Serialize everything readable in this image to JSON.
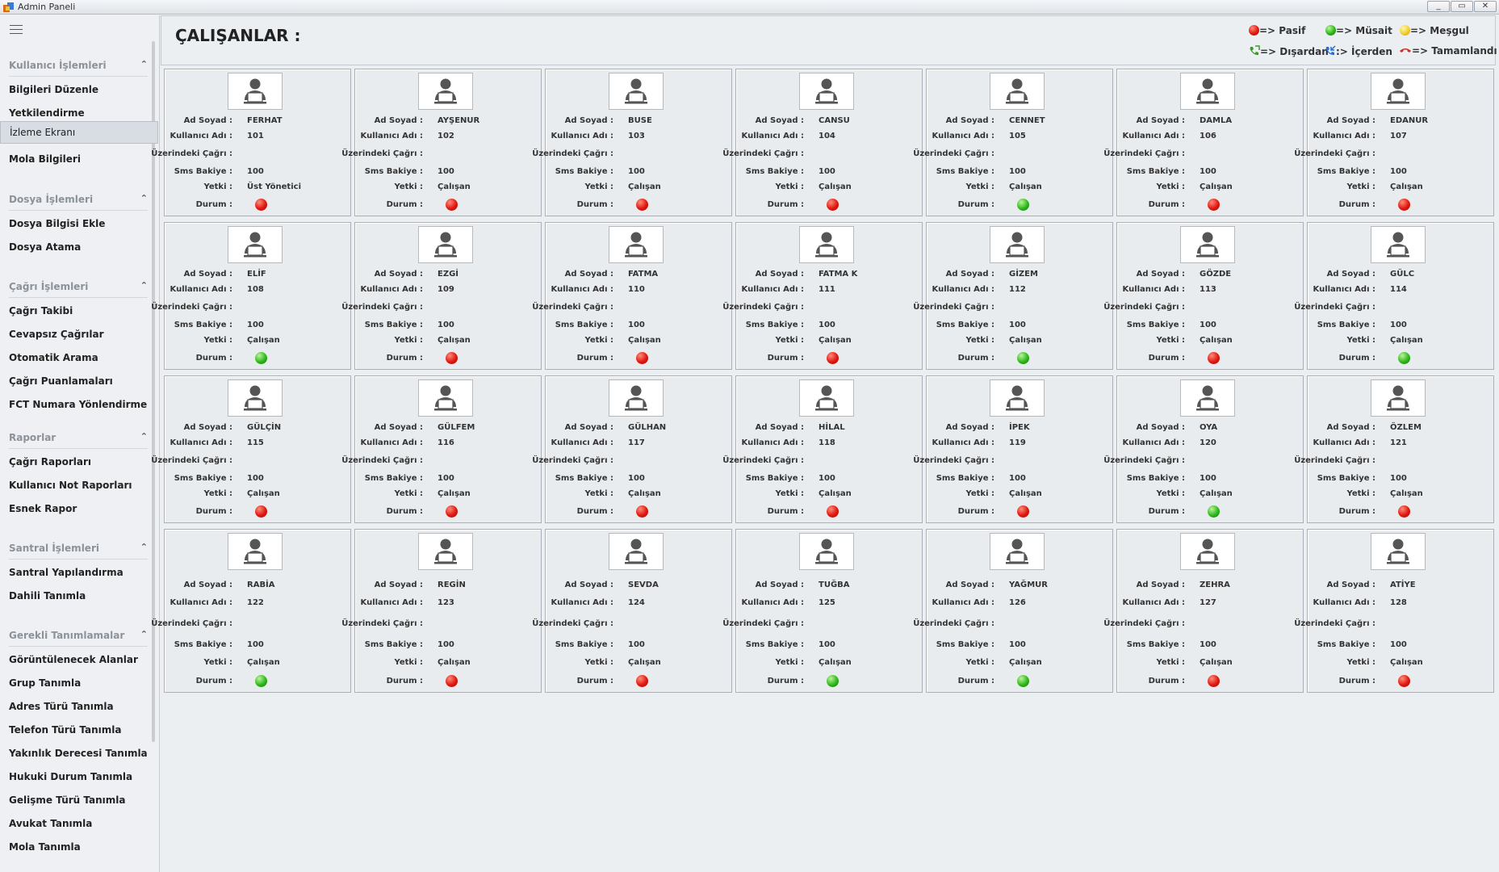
{
  "window": {
    "title": "Admin Paneli",
    "minimize": "_",
    "restore": "▭",
    "close": "✕"
  },
  "sidebar": {
    "groups": [
      {
        "title": "Kullanıcı İşlemleri",
        "items": [
          "Bilgileri Düzenle",
          "Yetkilendirme",
          "İzleme Ekranı",
          "Mola Bilgileri"
        ],
        "active_index": 2
      },
      {
        "title": "Dosya İşlemleri",
        "items": [
          "Dosya Bilgisi Ekle",
          "Dosya Atama"
        ]
      },
      {
        "title": "Çağrı İşlemleri",
        "items": [
          "Çağrı Takibi",
          "Cevapsız Çağrılar",
          "Otomatik Arama",
          "Çağrı Puanlamaları",
          "FCT Numara Yönlendirme"
        ]
      },
      {
        "title": "Raporlar",
        "items": [
          "Çağrı Raporları",
          "Kullanıcı Not Raporları",
          "Esnek Rapor"
        ]
      },
      {
        "title": "Santral İşlemleri",
        "items": [
          "Santral Yapılandırma",
          "Dahili Tanımla"
        ]
      },
      {
        "title": "Gerekli Tanımlamalar",
        "items": [
          "Görüntülenecek Alanlar",
          "Grup Tanımla",
          "Adres Türü Tanımla",
          "Telefon Türü Tanımla",
          "Yakınlık Derecesi Tanımla",
          "Hukuki Durum Tanımla",
          "Gelişme Türü Tanımla",
          "Avukat Tanımla",
          "Mola Tanımla"
        ]
      }
    ],
    "collapse_glyph": "⌃"
  },
  "header": {
    "title": "ÇALIŞANLAR :",
    "legend": [
      {
        "icon": "red-status-dot",
        "text": "=> Pasif"
      },
      {
        "icon": "green-status-dot",
        "text": "=> Müsait"
      },
      {
        "icon": "yellow-status-dot",
        "text": "=> Meşgul"
      },
      {
        "icon": "outgoing-call-icon",
        "text": "=> Dışardan"
      },
      {
        "icon": "incoming-call-icon",
        "text": ":> İçerden"
      },
      {
        "icon": "call-ended-icon",
        "text": "=> Tamamlandı"
      }
    ]
  },
  "labels": {
    "name": "Ad Soyad :",
    "username": "Kullanıcı Adı :",
    "call": "Üzerindeki Çağrı :",
    "sms": "Sms Bakiye :",
    "role": "Yetki :",
    "status": "Durum :"
  },
  "status_colors": {
    "red": "#e01810",
    "green": "#2fb81c",
    "yellow": "#f0d030"
  },
  "employees": [
    {
      "name": "FERHAT",
      "username": "101",
      "call": "",
      "sms": "100",
      "role": "Üst Yönetici",
      "status": "red"
    },
    {
      "name": "AYŞENUR",
      "username": "102",
      "call": "",
      "sms": "100",
      "role": "Çalışan",
      "status": "red"
    },
    {
      "name": "BUSE",
      "username": "103",
      "call": "",
      "sms": "100",
      "role": "Çalışan",
      "status": "red"
    },
    {
      "name": "CANSU",
      "username": "104",
      "call": "",
      "sms": "100",
      "role": "Çalışan",
      "status": "red"
    },
    {
      "name": "CENNET",
      "username": "105",
      "call": "",
      "sms": "100",
      "role": "Çalışan",
      "status": "green"
    },
    {
      "name": "DAMLA",
      "username": "106",
      "call": "",
      "sms": "100",
      "role": "Çalışan",
      "status": "red"
    },
    {
      "name": "EDANUR",
      "username": "107",
      "call": "",
      "sms": "100",
      "role": "Çalışan",
      "status": "red"
    },
    {
      "name": "ELİF",
      "username": "108",
      "call": "",
      "sms": "100",
      "role": "Çalışan",
      "status": "green"
    },
    {
      "name": "EZGİ",
      "username": "109",
      "call": "",
      "sms": "100",
      "role": "Çalışan",
      "status": "red"
    },
    {
      "name": "FATMA",
      "username": "110",
      "call": "",
      "sms": "100",
      "role": "Çalışan",
      "status": "red"
    },
    {
      "name": "FATMA K",
      "username": "111",
      "call": "",
      "sms": "100",
      "role": "Çalışan",
      "status": "red"
    },
    {
      "name": "GİZEM",
      "username": "112",
      "call": "",
      "sms": "100",
      "role": "Çalışan",
      "status": "green"
    },
    {
      "name": "GÖZDE",
      "username": "113",
      "call": "",
      "sms": "100",
      "role": "Çalışan",
      "status": "red"
    },
    {
      "name": "GÜLC",
      "username": "114",
      "call": "",
      "sms": "100",
      "role": "Çalışan",
      "status": "green"
    },
    {
      "name": "GÜLÇİN",
      "username": "115",
      "call": "",
      "sms": "100",
      "role": "Çalışan",
      "status": "red"
    },
    {
      "name": "GÜLFEM",
      "username": "116",
      "call": "",
      "sms": "100",
      "role": "Çalışan",
      "status": "red"
    },
    {
      "name": "GÜLHAN",
      "username": "117",
      "call": "",
      "sms": "100",
      "role": "Çalışan",
      "status": "red"
    },
    {
      "name": "HİLAL",
      "username": "118",
      "call": "",
      "sms": "100",
      "role": "Çalışan",
      "status": "red"
    },
    {
      "name": "İPEK",
      "username": "119",
      "call": "",
      "sms": "100",
      "role": "Çalışan",
      "status": "red"
    },
    {
      "name": "OYA",
      "username": "120",
      "call": "",
      "sms": "100",
      "role": "Çalışan",
      "status": "green"
    },
    {
      "name": "ÖZLEM",
      "username": "121",
      "call": "",
      "sms": "100",
      "role": "Çalışan",
      "status": "red"
    },
    {
      "name": "RABİA",
      "username": "122",
      "call": "",
      "sms": "100",
      "role": "Çalışan",
      "status": "green"
    },
    {
      "name": "REGİN",
      "username": "123",
      "call": "",
      "sms": "100",
      "role": "Çalışan",
      "status": "red"
    },
    {
      "name": "SEVDA",
      "username": "124",
      "call": "",
      "sms": "100",
      "role": "Çalışan",
      "status": "red"
    },
    {
      "name": "TUĞBA",
      "username": "125",
      "call": "",
      "sms": "100",
      "role": "Çalışan",
      "status": "green"
    },
    {
      "name": "YAĞMUR",
      "username": "126",
      "call": "",
      "sms": "100",
      "role": "Çalışan",
      "status": "green"
    },
    {
      "name": "ZEHRA",
      "username": "127",
      "call": "",
      "sms": "100",
      "role": "Çalışan",
      "status": "red"
    },
    {
      "name": "ATİYE",
      "username": "128",
      "call": "",
      "sms": "100",
      "role": "Çalışan",
      "status": "red"
    }
  ]
}
